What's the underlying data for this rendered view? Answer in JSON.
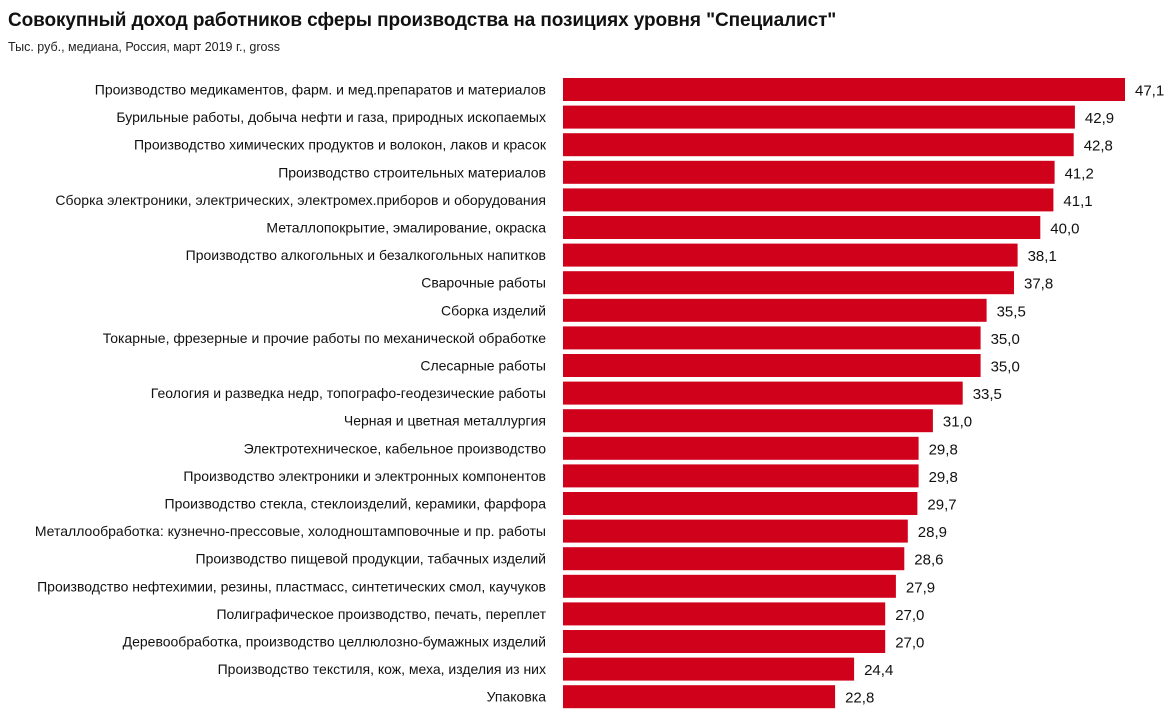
{
  "chart_data": {
    "type": "bar",
    "orientation": "horizontal",
    "title": "Совокупный доход работников сферы производства на позициях уровня \"Специалист\"",
    "subtitle": "Тыс. руб., медиана, Россия, март 2019 г., gross",
    "xlabel": "",
    "ylabel": "",
    "grid": false,
    "legend": "none",
    "bar_color": "#d0021b",
    "xlim": [
      0,
      47.1
    ],
    "categories": [
      "Производство медикаментов, фарм. и мед.препаратов и материалов",
      "Бурильные работы, добыча нефти и газа, природных ископаемых",
      "Производство химических продуктов и волокон, лаков и красок",
      "Производство строительных материалов",
      "Сборка электроники, электрических, электромех.приборов и оборудования",
      "Металлопокрытие, эмалирование, окраска",
      "Производство алкогольных и безалкогольных напитков",
      "Сварочные работы",
      "Сборка изделий",
      "Токарные, фрезерные и прочие работы по механической обработке",
      "Слесарные работы",
      "Геология и разведка недр, топографо-геодезические работы",
      "Черная и цветная металлургия",
      "Электротехническое, кабельное производство",
      "Производство электроники и электронных компонентов",
      "Производство стекла, стеклоизделий, керамики, фарфора",
      "Металлообработка: кузнечно-прессовые, холодноштамповочные и пр. работы",
      "Производство пищевой продукции, табачных изделий",
      "Производство нефтехимии, резины, пластмасс, синтетических смол, каучуков",
      "Полиграфическое производство, печать, переплет",
      "Деревообработка, производство целлюлозно-бумажных изделий",
      "Производство текстиля, кож, меха, изделия из них",
      "Упаковка"
    ],
    "values": [
      47.1,
      42.9,
      42.8,
      41.2,
      41.1,
      40.0,
      38.1,
      37.8,
      35.5,
      35.0,
      35.0,
      33.5,
      31.0,
      29.8,
      29.8,
      29.7,
      28.9,
      28.6,
      27.9,
      27.0,
      27.0,
      24.4,
      22.8
    ],
    "value_labels": [
      "47,1",
      "42,9",
      "42,8",
      "41,2",
      "41,1",
      "40,0",
      "38,1",
      "37,8",
      "35,5",
      "35,0",
      "35,0",
      "33,5",
      "31,0",
      "29,8",
      "29,8",
      "29,7",
      "28,9",
      "28,6",
      "27,9",
      "27,0",
      "27,0",
      "24,4",
      "22,8"
    ]
  }
}
